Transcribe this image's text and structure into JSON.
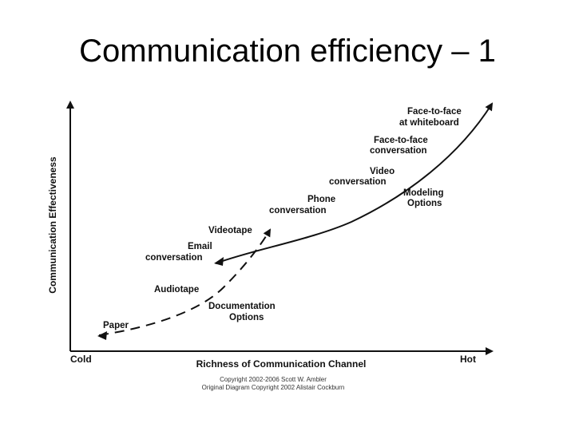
{
  "title": "Communication efficiency – 1",
  "axes": {
    "y_label": "Communication Effectiveness",
    "x_label": "Richness of Communication Channel",
    "x_min_label": "Cold",
    "x_max_label": "Hot"
  },
  "labels": {
    "face_to_face_whiteboard": [
      "Face-to-face",
      "at whiteboard"
    ],
    "face_to_face_conversation": [
      "Face-to-face",
      "conversation"
    ],
    "video_conversation": [
      "Video",
      "conversation"
    ],
    "modeling_options": [
      "Modeling",
      "Options"
    ],
    "phone_conversation": [
      "Phone",
      "conversation"
    ],
    "videotape": "Videotape",
    "email_conversation": [
      "Email",
      "conversation"
    ],
    "audiotape": "Audiotape",
    "documentation_options": [
      "Documentation",
      "Options"
    ],
    "paper": "Paper"
  },
  "copyright": [
    "Copyright 2002-2006 Scott W. Ambler",
    "Original Diagram Copyright 2002 Alistair Cockburn"
  ]
}
